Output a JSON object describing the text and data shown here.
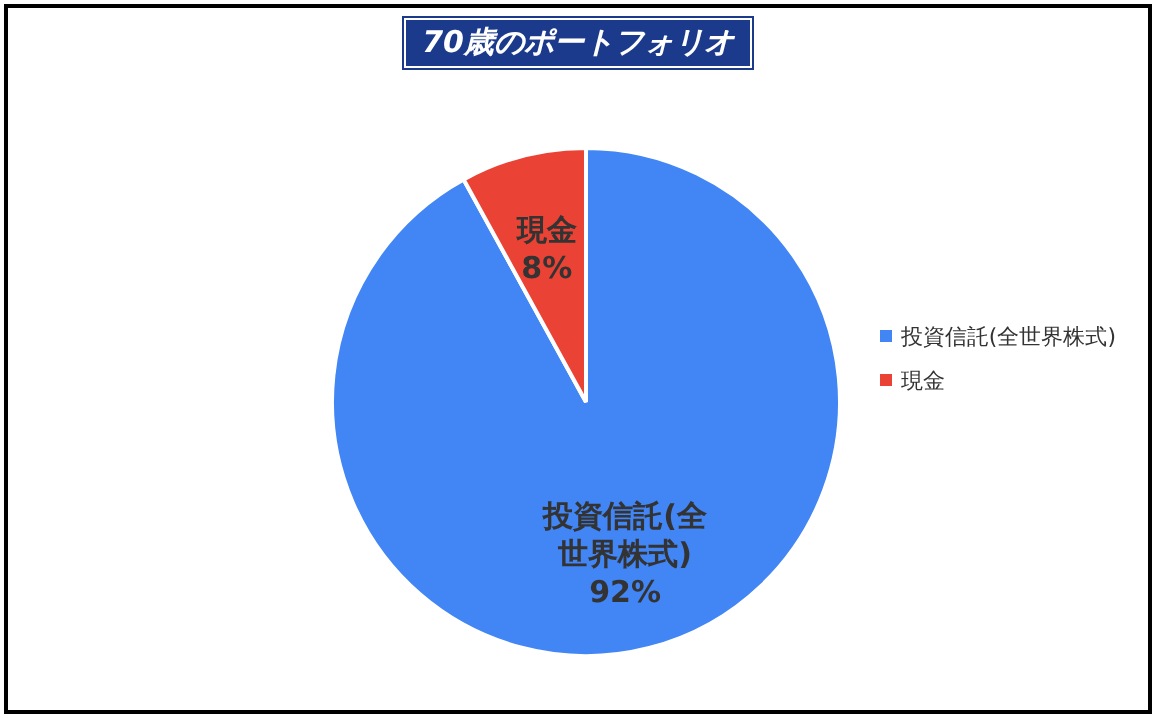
{
  "chart_data": {
    "type": "pie",
    "title": "70歳のポートフォリオ",
    "categories": [
      "投資信託(全世界株式)",
      "現金"
    ],
    "values": [
      92,
      8
    ],
    "value_labels": [
      "92%",
      "8%"
    ],
    "colors": [
      "#4285f4",
      "#ea4335"
    ],
    "legend": "right"
  }
}
